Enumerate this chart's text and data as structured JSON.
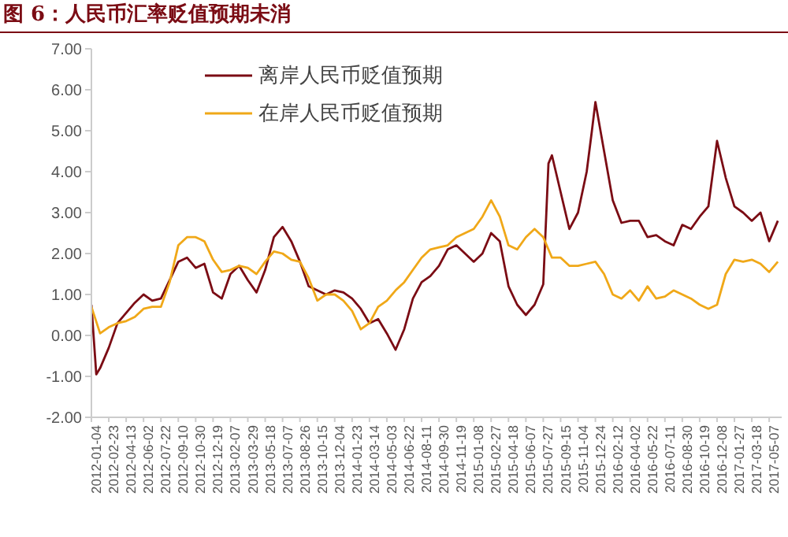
{
  "chart_data": {
    "type": "line",
    "title": "图 6：人民币汇率贬值预期未消",
    "xlim": [
      "2012-01-04",
      "2017-06-12"
    ],
    "xticks": [
      "2012-01-04",
      "2012-02-23",
      "2012-04-13",
      "2012-06-02",
      "2012-07-22",
      "2012-09-10",
      "2012-10-30",
      "2012-12-19",
      "2013-02-07",
      "2013-03-29",
      "2013-05-18",
      "2013-07-07",
      "2013-08-26",
      "2013-10-15",
      "2013-12-04",
      "2014-01-23",
      "2014-03-14",
      "2014-05-03",
      "2014-06-22",
      "2014-08-11",
      "2014-09-30",
      "2014-11-19",
      "2015-01-08",
      "2015-02-27",
      "2015-04-18",
      "2015-06-07",
      "2015-07-27",
      "2015-09-15",
      "2015-11-04",
      "2015-12-24",
      "2016-02-12",
      "2016-04-02",
      "2016-05-22",
      "2016-07-11",
      "2016-08-30",
      "2016-10-19",
      "2016-12-08",
      "2017-01-27",
      "2017-03-18",
      "2017-05-07"
    ],
    "ylim": [
      -2,
      7
    ],
    "yticks": [
      {
        "value": -2,
        "label": "-2.00"
      },
      {
        "value": -1,
        "label": "-1.00"
      },
      {
        "value": 0,
        "label": "0.00"
      },
      {
        "value": 1,
        "label": "1.00"
      },
      {
        "value": 2,
        "label": "2.00"
      },
      {
        "value": 3,
        "label": "3.00"
      },
      {
        "value": 4,
        "label": "4.00"
      },
      {
        "value": 5,
        "label": "5.00"
      },
      {
        "value": 6,
        "label": "6.00"
      },
      {
        "value": 7,
        "label": "7.00"
      }
    ],
    "grid": false,
    "legend": "top",
    "marker": "none",
    "series": [
      {
        "name": "离岸人民币贬值预期",
        "color": "#7b0c14",
        "x": [
          "2012-01-04",
          "2012-01-18",
          "2012-01-29",
          "2012-02-23",
          "2012-03-19",
          "2012-04-13",
          "2012-05-08",
          "2012-06-02",
          "2012-06-27",
          "2012-07-22",
          "2012-08-16",
          "2012-09-10",
          "2012-10-05",
          "2012-10-30",
          "2012-11-24",
          "2012-12-19",
          "2013-01-13",
          "2013-02-07",
          "2013-03-04",
          "2013-03-29",
          "2013-04-23",
          "2013-05-18",
          "2013-06-12",
          "2013-07-07",
          "2013-08-01",
          "2013-08-26",
          "2013-09-20",
          "2013-10-15",
          "2013-11-09",
          "2013-12-04",
          "2013-12-29",
          "2014-01-23",
          "2014-02-17",
          "2014-03-14",
          "2014-04-08",
          "2014-05-03",
          "2014-05-28",
          "2014-06-22",
          "2014-07-17",
          "2014-08-11",
          "2014-09-05",
          "2014-09-30",
          "2014-10-25",
          "2014-11-19",
          "2014-12-14",
          "2015-01-08",
          "2015-02-02",
          "2015-02-27",
          "2015-03-24",
          "2015-04-18",
          "2015-05-13",
          "2015-06-07",
          "2015-07-02",
          "2015-07-27",
          "2015-08-11",
          "2015-08-21",
          "2015-09-15",
          "2015-10-10",
          "2015-11-04",
          "2015-11-29",
          "2015-12-14",
          "2015-12-24",
          "2016-01-18",
          "2016-02-12",
          "2016-03-08",
          "2016-04-02",
          "2016-04-27",
          "2016-05-22",
          "2016-06-16",
          "2016-07-11",
          "2016-08-05",
          "2016-08-30",
          "2016-09-24",
          "2016-10-19",
          "2016-11-13",
          "2016-12-08",
          "2017-01-02",
          "2017-01-27",
          "2017-02-21",
          "2017-03-18",
          "2017-04-12",
          "2017-05-07",
          "2017-06-01"
        ],
        "values": [
          0.75,
          -0.95,
          -0.8,
          -0.3,
          0.3,
          0.55,
          0.8,
          1.0,
          0.85,
          0.9,
          1.35,
          1.8,
          1.9,
          1.65,
          1.75,
          1.05,
          0.9,
          1.5,
          1.7,
          1.35,
          1.05,
          1.6,
          2.4,
          2.65,
          2.3,
          1.8,
          1.2,
          1.1,
          1.0,
          1.1,
          1.05,
          0.9,
          0.65,
          0.3,
          0.4,
          0.05,
          -0.35,
          0.15,
          0.9,
          1.3,
          1.45,
          1.7,
          2.1,
          2.2,
          2.0,
          1.8,
          2.0,
          2.5,
          2.3,
          1.2,
          0.75,
          0.5,
          0.75,
          1.25,
          4.2,
          4.4,
          3.5,
          2.6,
          3.0,
          4.0,
          5.0,
          5.7,
          4.5,
          3.3,
          2.75,
          2.8,
          2.8,
          2.4,
          2.45,
          2.3,
          2.2,
          2.7,
          2.6,
          2.9,
          3.15,
          4.75,
          3.85,
          3.15,
          3.0,
          2.8,
          3.0,
          2.3,
          2.8
        ]
      },
      {
        "name": "在岸人民币贬值预期",
        "color": "#f0a818",
        "x": [
          "2012-01-04",
          "2012-01-29",
          "2012-02-23",
          "2012-03-19",
          "2012-04-13",
          "2012-05-08",
          "2012-06-02",
          "2012-06-27",
          "2012-07-22",
          "2012-08-16",
          "2012-09-10",
          "2012-10-05",
          "2012-10-30",
          "2012-11-24",
          "2012-12-19",
          "2013-01-13",
          "2013-02-07",
          "2013-03-04",
          "2013-03-29",
          "2013-04-23",
          "2013-05-18",
          "2013-06-12",
          "2013-07-07",
          "2013-08-01",
          "2013-08-26",
          "2013-09-20",
          "2013-10-15",
          "2013-11-09",
          "2013-12-04",
          "2013-12-29",
          "2014-01-23",
          "2014-02-17",
          "2014-03-14",
          "2014-04-08",
          "2014-05-03",
          "2014-05-28",
          "2014-06-22",
          "2014-07-17",
          "2014-08-11",
          "2014-09-05",
          "2014-09-30",
          "2014-10-25",
          "2014-11-19",
          "2014-12-14",
          "2015-01-08",
          "2015-02-02",
          "2015-02-27",
          "2015-03-24",
          "2015-04-18",
          "2015-05-13",
          "2015-06-07",
          "2015-07-02",
          "2015-07-27",
          "2015-08-21",
          "2015-09-15",
          "2015-10-10",
          "2015-11-04",
          "2015-11-29",
          "2015-12-24",
          "2016-01-18",
          "2016-02-12",
          "2016-03-08",
          "2016-04-02",
          "2016-04-27",
          "2016-05-22",
          "2016-06-16",
          "2016-07-11",
          "2016-08-05",
          "2016-08-30",
          "2016-09-24",
          "2016-10-19",
          "2016-11-13",
          "2016-12-08",
          "2017-01-02",
          "2017-01-27",
          "2017-02-21",
          "2017-03-18",
          "2017-04-12",
          "2017-05-07",
          "2017-06-01"
        ],
        "values": [
          0.7,
          0.05,
          0.2,
          0.3,
          0.35,
          0.45,
          0.65,
          0.7,
          0.7,
          1.3,
          2.2,
          2.4,
          2.4,
          2.3,
          1.85,
          1.55,
          1.6,
          1.7,
          1.65,
          1.5,
          1.8,
          2.05,
          2.0,
          1.85,
          1.8,
          1.4,
          0.85,
          1.0,
          1.0,
          0.85,
          0.6,
          0.15,
          0.3,
          0.7,
          0.85,
          1.1,
          1.3,
          1.6,
          1.9,
          2.1,
          2.15,
          2.2,
          2.4,
          2.5,
          2.6,
          2.9,
          3.3,
          2.9,
          2.2,
          2.1,
          2.4,
          2.6,
          2.4,
          1.9,
          1.9,
          1.7,
          1.7,
          1.75,
          1.8,
          1.5,
          1.0,
          0.9,
          1.1,
          0.85,
          1.2,
          0.9,
          0.95,
          1.1,
          1.0,
          0.9,
          0.75,
          0.65,
          0.75,
          1.5,
          1.85,
          1.8,
          1.85,
          1.75,
          1.55,
          1.8
        ]
      }
    ]
  }
}
